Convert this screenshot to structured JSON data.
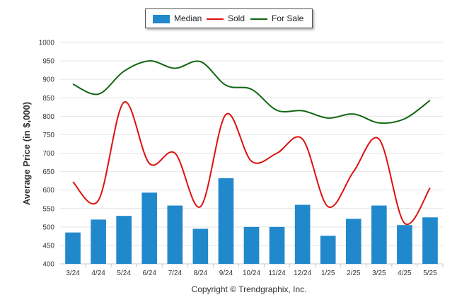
{
  "chart_data": {
    "type": "bar",
    "categories": [
      "3/24",
      "4/24",
      "5/24",
      "6/24",
      "7/24",
      "8/24",
      "9/24",
      "10/24",
      "11/24",
      "12/24",
      "1/25",
      "2/25",
      "3/25",
      "4/25",
      "5/25"
    ],
    "series": [
      {
        "name": "Median",
        "type": "bar",
        "color": "#2288cc",
        "values": [
          485,
          520,
          530,
          593,
          558,
          495,
          632,
          500,
          500,
          560,
          476,
          522,
          558,
          505,
          526
        ]
      },
      {
        "name": "Sold",
        "type": "line",
        "color": "#dd1111",
        "values": [
          622,
          572,
          838,
          672,
          700,
          555,
          805,
          678,
          700,
          738,
          555,
          650,
          738,
          510,
          606
        ]
      },
      {
        "name": "For Sale",
        "type": "line",
        "color": "#116611",
        "values": [
          887,
          860,
          922,
          950,
          930,
          948,
          884,
          873,
          816,
          815,
          795,
          806,
          782,
          793,
          843
        ]
      }
    ],
    "ylabel": "Average Price (in $,000)",
    "ylim": [
      400,
      1000
    ],
    "yticks": [
      400,
      450,
      500,
      550,
      600,
      650,
      700,
      750,
      800,
      850,
      900,
      950,
      1000
    ],
    "grid": true,
    "legend_position": "top-center"
  },
  "footer": {
    "copyright": "Copyright © Trendgraphix, Inc."
  }
}
